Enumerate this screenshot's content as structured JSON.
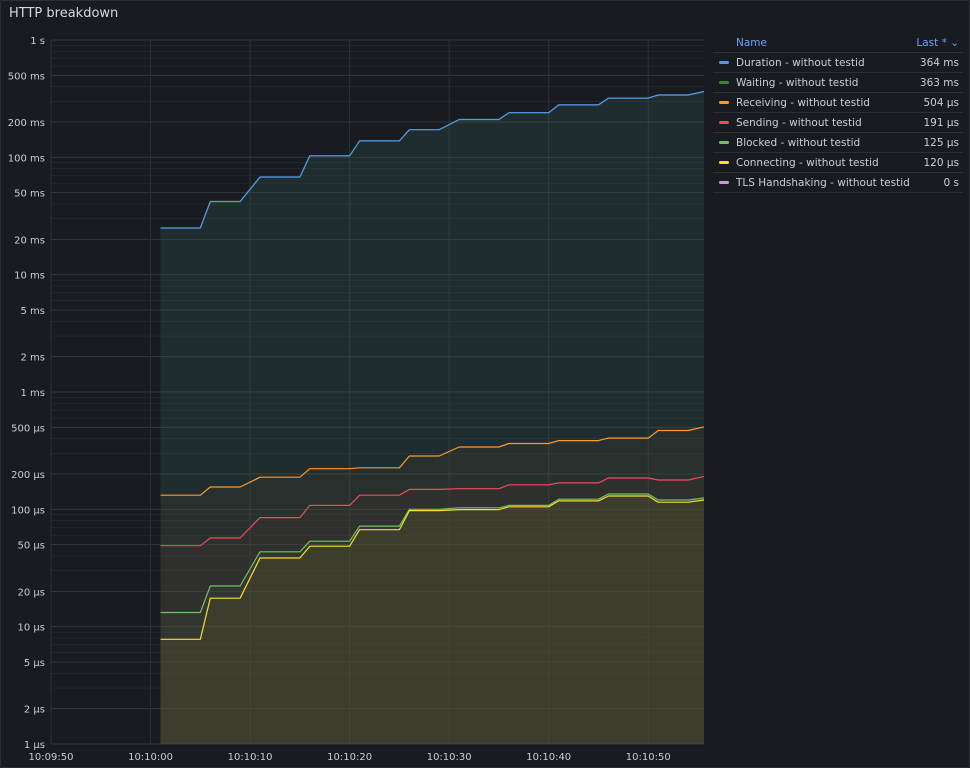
{
  "panel": {
    "title": "HTTP breakdown"
  },
  "legend": {
    "name_header": "Name",
    "last_header": "Last * ⌄",
    "items": [
      {
        "name": "Duration - without testid",
        "last": "364 ms",
        "color": "#5794f2"
      },
      {
        "name": "Waiting - without testid",
        "last": "363 ms",
        "color": "#37872d"
      },
      {
        "name": "Receiving - without testid",
        "last": "504 µs",
        "color": "#ff9830"
      },
      {
        "name": "Sending - without testid",
        "last": "191 µs",
        "color": "#f2495c"
      },
      {
        "name": "Blocked - without testid",
        "last": "125 µs",
        "color": "#73bf69"
      },
      {
        "name": "Connecting - without testid",
        "last": "120 µs",
        "color": "#fade2a"
      },
      {
        "name": "TLS Handshaking - without testid",
        "last": "0 s",
        "color": "#ca95e5"
      }
    ]
  },
  "chart_data": {
    "type": "area",
    "y_scale": "log",
    "y_unit": "seconds",
    "ylim": [
      1e-06,
      1
    ],
    "y_ticks": [
      {
        "v": 1,
        "label": "1 s"
      },
      {
        "v": 0.5,
        "label": "500 ms"
      },
      {
        "v": 0.2,
        "label": "200 ms"
      },
      {
        "v": 0.1,
        "label": "100 ms"
      },
      {
        "v": 0.05,
        "label": "50 ms"
      },
      {
        "v": 0.02,
        "label": "20 ms"
      },
      {
        "v": 0.01,
        "label": "10 ms"
      },
      {
        "v": 0.005,
        "label": "5 ms"
      },
      {
        "v": 0.002,
        "label": "2 ms"
      },
      {
        "v": 0.001,
        "label": "1 ms"
      },
      {
        "v": 0.0005,
        "label": "500 µs"
      },
      {
        "v": 0.0002,
        "label": "200 µs"
      },
      {
        "v": 0.0001,
        "label": "100 µs"
      },
      {
        "v": 5e-05,
        "label": "50 µs"
      },
      {
        "v": 2e-05,
        "label": "20 µs"
      },
      {
        "v": 1e-05,
        "label": "10 µs"
      },
      {
        "v": 5e-06,
        "label": "5 µs"
      },
      {
        "v": 2e-06,
        "label": "2 µs"
      },
      {
        "v": 1e-06,
        "label": "1 µs"
      }
    ],
    "x_ticks": [
      "10:09:50",
      "10:10:00",
      "10:10:10",
      "10:10:20",
      "10:10:30",
      "10:10:40",
      "10:10:50"
    ],
    "xlim_seconds": [
      -10,
      55.6
    ],
    "grid": true,
    "legend_position": "right",
    "series": [
      {
        "name": "Waiting - without testid",
        "color": "#37872d",
        "fill": "rgba(60,110,100,0.22)",
        "points": [
          [
            1,
            0.025
          ],
          [
            5,
            0.025
          ],
          [
            6,
            0.042
          ],
          [
            9,
            0.042
          ],
          [
            11,
            0.068
          ],
          [
            15,
            0.068
          ],
          [
            16,
            0.103
          ],
          [
            20,
            0.103
          ],
          [
            21,
            0.138
          ],
          [
            25,
            0.138
          ],
          [
            26,
            0.172
          ],
          [
            29,
            0.172
          ],
          [
            31,
            0.21
          ],
          [
            35,
            0.21
          ],
          [
            36,
            0.24
          ],
          [
            40,
            0.24
          ],
          [
            41,
            0.28
          ],
          [
            45,
            0.28
          ],
          [
            46,
            0.32
          ],
          [
            50,
            0.32
          ],
          [
            51,
            0.34
          ],
          [
            54,
            0.34
          ],
          [
            55.6,
            0.363
          ]
        ]
      },
      {
        "name": "Duration - without testid",
        "color": "#5794f2",
        "fill": "rgba(0,0,0,0)",
        "points": [
          [
            1,
            0.025
          ],
          [
            5,
            0.025
          ],
          [
            6,
            0.042
          ],
          [
            9,
            0.042
          ],
          [
            11,
            0.068
          ],
          [
            15,
            0.068
          ],
          [
            16,
            0.103
          ],
          [
            20,
            0.103
          ],
          [
            21,
            0.138
          ],
          [
            25,
            0.138
          ],
          [
            26,
            0.172
          ],
          [
            29,
            0.172
          ],
          [
            31,
            0.21
          ],
          [
            35,
            0.21
          ],
          [
            36,
            0.24
          ],
          [
            40,
            0.24
          ],
          [
            41,
            0.28
          ],
          [
            45,
            0.28
          ],
          [
            46,
            0.32
          ],
          [
            50,
            0.32
          ],
          [
            51,
            0.34
          ],
          [
            54,
            0.34
          ],
          [
            55.6,
            0.364
          ]
        ]
      },
      {
        "name": "Receiving - without testid",
        "color": "#ff9830",
        "fill": "rgba(90,70,50,0.16)",
        "points": [
          [
            1,
            0.000132
          ],
          [
            5,
            0.000132
          ],
          [
            6,
            0.000155
          ],
          [
            9,
            0.000155
          ],
          [
            11,
            0.000188
          ],
          [
            15,
            0.000188
          ],
          [
            16,
            0.000222
          ],
          [
            20,
            0.000222
          ],
          [
            21,
            0.000226
          ],
          [
            25,
            0.000226
          ],
          [
            26,
            0.000285
          ],
          [
            29,
            0.000285
          ],
          [
            31,
            0.00034
          ],
          [
            35,
            0.00034
          ],
          [
            36,
            0.000364
          ],
          [
            40,
            0.000364
          ],
          [
            41,
            0.000385
          ],
          [
            45,
            0.000385
          ],
          [
            46,
            0.000405
          ],
          [
            50,
            0.000405
          ],
          [
            51,
            0.00047
          ],
          [
            54,
            0.00047
          ],
          [
            55.6,
            0.000504
          ]
        ]
      },
      {
        "name": "Sending - without testid",
        "color": "#f2495c",
        "fill": "rgba(90,50,50,0.14)",
        "points": [
          [
            1,
            4.9e-05
          ],
          [
            5,
            4.9e-05
          ],
          [
            6,
            5.7e-05
          ],
          [
            9,
            5.7e-05
          ],
          [
            11,
            8.5e-05
          ],
          [
            15,
            8.5e-05
          ],
          [
            16,
            0.000108
          ],
          [
            20,
            0.000108
          ],
          [
            21,
            0.000132
          ],
          [
            25,
            0.000132
          ],
          [
            26,
            0.000148
          ],
          [
            29,
            0.000148
          ],
          [
            31,
            0.00015
          ],
          [
            35,
            0.00015
          ],
          [
            36,
            0.000162
          ],
          [
            40,
            0.000162
          ],
          [
            41,
            0.000168
          ],
          [
            45,
            0.000168
          ],
          [
            46,
            0.000185
          ],
          [
            50,
            0.000185
          ],
          [
            51,
            0.000178
          ],
          [
            54,
            0.000178
          ],
          [
            55.6,
            0.000191
          ]
        ]
      },
      {
        "name": "Blocked - without testid",
        "color": "#73bf69",
        "fill": "rgba(80,90,50,0.14)",
        "points": [
          [
            1,
            1.32e-05
          ],
          [
            5,
            1.32e-05
          ],
          [
            6,
            2.22e-05
          ],
          [
            9,
            2.22e-05
          ],
          [
            11,
            4.35e-05
          ],
          [
            15,
            4.35e-05
          ],
          [
            16,
            5.35e-05
          ],
          [
            20,
            5.35e-05
          ],
          [
            21,
            7.2e-05
          ],
          [
            25,
            7.2e-05
          ],
          [
            26,
            0.0001
          ],
          [
            29,
            0.0001
          ],
          [
            31,
            0.000103
          ],
          [
            35,
            0.000103
          ],
          [
            36,
            0.000108
          ],
          [
            40,
            0.000108
          ],
          [
            41,
            0.000122
          ],
          [
            45,
            0.000122
          ],
          [
            46,
            0.000135
          ],
          [
            50,
            0.000135
          ],
          [
            51,
            0.00012
          ],
          [
            54,
            0.00012
          ],
          [
            55.6,
            0.000125
          ]
        ]
      },
      {
        "name": "Connecting - without testid",
        "color": "#fade2a",
        "fill": "rgba(110,100,40,0.16)",
        "points": [
          [
            1,
            7.8e-06
          ],
          [
            5,
            7.8e-06
          ],
          [
            6,
            1.75e-05
          ],
          [
            9,
            1.75e-05
          ],
          [
            11,
            3.85e-05
          ],
          [
            15,
            3.85e-05
          ],
          [
            16,
            4.85e-05
          ],
          [
            20,
            4.85e-05
          ],
          [
            21,
            6.7e-05
          ],
          [
            25,
            6.7e-05
          ],
          [
            26,
            9.75e-05
          ],
          [
            29,
            9.75e-05
          ],
          [
            31,
            9.95e-05
          ],
          [
            35,
            9.95e-05
          ],
          [
            36,
            0.000105
          ],
          [
            40,
            0.000105
          ],
          [
            41,
            0.000118
          ],
          [
            45,
            0.000118
          ],
          [
            46,
            0.00013
          ],
          [
            50,
            0.00013
          ],
          [
            51,
            0.000115
          ],
          [
            54,
            0.000115
          ],
          [
            55.6,
            0.00012
          ]
        ]
      }
    ]
  }
}
